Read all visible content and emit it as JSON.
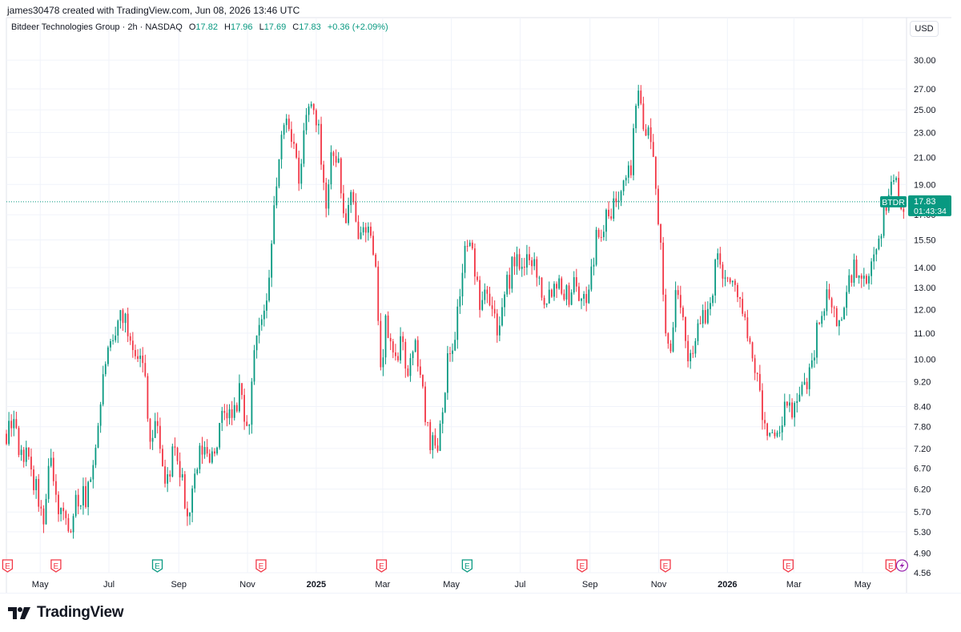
{
  "header": {
    "created_line": "james30478 created with TradingView.com, Jun 08, 2026 13:46 UTC",
    "symbol_title": "Bitdeer Technologies Group · 2h · NASDAQ",
    "ohlc": {
      "o_label": "O",
      "o": "17.82",
      "h_label": "H",
      "h": "17.96",
      "l_label": "L",
      "l": "17.69",
      "c_label": "C",
      "c": "17.83",
      "change": "+0.36 (+2.09%)"
    },
    "currency": "USD"
  },
  "footer": {
    "brand": "TradingView"
  },
  "chart_data": {
    "type": "candlestick",
    "symbol": "BTDR",
    "interval": "2h",
    "scale": "log",
    "last_price": 17.83,
    "countdown": "01:43:34",
    "price_label": "17.83",
    "y_ticks": [
      30.0,
      27.0,
      25.0,
      23.0,
      21.0,
      19.0,
      17.0,
      15.5,
      14.0,
      13.0,
      12.0,
      11.0,
      10.0,
      9.2,
      8.4,
      7.8,
      7.2,
      6.7,
      6.2,
      5.7,
      5.3,
      4.9,
      4.56
    ],
    "y_tick_labels": [
      "30.00",
      "27.00",
      "25.00",
      "23.00",
      "21.00",
      "19.00",
      "17.00",
      "15.50",
      "14.00",
      "13.00",
      "12.00",
      "11.00",
      "10.00",
      "9.20",
      "8.40",
      "7.80",
      "7.20",
      "6.70",
      "6.20",
      "5.70",
      "5.30",
      "4.90",
      "4.56"
    ],
    "ylim": [
      4.56,
      32.5
    ],
    "x_labels": [
      "May",
      "Jul",
      "Sep",
      "Nov",
      "2025",
      "Mar",
      "May",
      "Jul",
      "Sep",
      "Nov",
      "2026",
      "Mar",
      "May"
    ],
    "x_label_bold": [
      false,
      false,
      false,
      false,
      true,
      false,
      false,
      false,
      false,
      false,
      true,
      false,
      false
    ],
    "x_label_dates": [
      "2024-05-01",
      "2024-07-01",
      "2024-09-01",
      "2024-11-01",
      "2025-01-01",
      "2025-03-01",
      "2025-05-01",
      "2025-07-01",
      "2025-09-01",
      "2025-11-01",
      "2026-01-01",
      "2026-03-01",
      "2026-05-01"
    ],
    "x_range": [
      "2024-04-01",
      "2026-06-09"
    ],
    "series": [
      {
        "name": "",
        "anchors": [
          [
            "2024-04-01",
            7.6
          ],
          [
            "2024-04-07",
            8.0
          ],
          [
            "2024-04-14",
            7.0
          ],
          [
            "2024-04-21",
            6.9
          ],
          [
            "2024-04-28",
            6.1
          ],
          [
            "2024-05-04",
            5.4
          ],
          [
            "2024-05-10",
            6.9
          ],
          [
            "2024-05-15",
            6.0
          ],
          [
            "2024-05-21",
            5.6
          ],
          [
            "2024-05-28",
            5.5
          ],
          [
            "2024-06-04",
            6.0
          ],
          [
            "2024-06-12",
            6.0
          ],
          [
            "2024-06-20",
            7.5
          ],
          [
            "2024-06-28",
            10.0
          ],
          [
            "2024-07-05",
            10.4
          ],
          [
            "2024-07-12",
            12.1
          ],
          [
            "2024-07-18",
            11.0
          ],
          [
            "2024-07-25",
            10.5
          ],
          [
            "2024-08-02",
            9.5
          ],
          [
            "2024-08-07",
            7.3
          ],
          [
            "2024-08-13",
            8.0
          ],
          [
            "2024-08-20",
            6.2
          ],
          [
            "2024-08-27",
            7.1
          ],
          [
            "2024-09-03",
            6.5
          ],
          [
            "2024-09-09",
            5.5
          ],
          [
            "2024-09-14",
            6.2
          ],
          [
            "2024-09-21",
            7.2
          ],
          [
            "2024-09-28",
            7.0
          ],
          [
            "2024-10-05",
            7.4
          ],
          [
            "2024-10-12",
            8.3
          ],
          [
            "2024-10-19",
            8.0
          ],
          [
            "2024-10-26",
            9.0
          ],
          [
            "2024-11-01",
            7.5
          ],
          [
            "2024-11-07",
            10.0
          ],
          [
            "2024-11-13",
            11.5
          ],
          [
            "2024-11-19",
            12.0
          ],
          [
            "2024-11-25",
            18.0
          ],
          [
            "2024-12-01",
            22.0
          ],
          [
            "2024-12-06",
            25.0
          ],
          [
            "2024-12-12",
            22.0
          ],
          [
            "2024-12-17",
            18.5
          ],
          [
            "2024-12-21",
            23.0
          ],
          [
            "2024-12-26",
            26.0
          ],
          [
            "2025-01-01",
            24.5
          ],
          [
            "2025-01-06",
            21.0
          ],
          [
            "2025-01-10",
            17.5
          ],
          [
            "2025-01-15",
            22.0
          ],
          [
            "2025-01-20",
            21.0
          ],
          [
            "2025-01-26",
            16.5
          ],
          [
            "2025-02-01",
            18.0
          ],
          [
            "2025-02-06",
            16.0
          ],
          [
            "2025-02-12",
            17.0
          ],
          [
            "2025-02-18",
            15.5
          ],
          [
            "2025-02-24",
            13.0
          ],
          [
            "2025-02-28",
            9.3
          ],
          [
            "2025-03-04",
            11.5
          ],
          [
            "2025-03-10",
            10.0
          ],
          [
            "2025-03-17",
            10.5
          ],
          [
            "2025-03-24",
            9.6
          ],
          [
            "2025-03-31",
            10.5
          ],
          [
            "2025-04-06",
            8.6
          ],
          [
            "2025-04-12",
            7.5
          ],
          [
            "2025-04-18",
            7.2
          ],
          [
            "2025-04-23",
            8.5
          ],
          [
            "2025-04-28",
            10.0
          ],
          [
            "2025-05-04",
            11.0
          ],
          [
            "2025-05-09",
            13.0
          ],
          [
            "2025-05-14",
            15.5
          ],
          [
            "2025-05-20",
            14.5
          ],
          [
            "2025-05-26",
            12.5
          ],
          [
            "2025-06-01",
            13.5
          ],
          [
            "2025-06-07",
            12.0
          ],
          [
            "2025-06-13",
            11.0
          ],
          [
            "2025-06-19",
            13.0
          ],
          [
            "2025-06-26",
            14.5
          ],
          [
            "2025-07-03",
            13.5
          ],
          [
            "2025-07-09",
            15.0
          ],
          [
            "2025-07-15",
            14.0
          ],
          [
            "2025-07-22",
            12.5
          ],
          [
            "2025-07-29",
            13.0
          ],
          [
            "2025-08-05",
            13.5
          ],
          [
            "2025-08-12",
            12.5
          ],
          [
            "2025-08-19",
            13.5
          ],
          [
            "2025-08-26",
            12.0
          ],
          [
            "2025-09-02",
            14.0
          ],
          [
            "2025-09-08",
            16.0
          ],
          [
            "2025-09-14",
            16.5
          ],
          [
            "2025-09-20",
            17.0
          ],
          [
            "2025-09-26",
            18.5
          ],
          [
            "2025-10-02",
            20.5
          ],
          [
            "2025-10-07",
            19.5
          ],
          [
            "2025-10-11",
            26.0
          ],
          [
            "2025-10-16",
            25.5
          ],
          [
            "2025-10-21",
            23.0
          ],
          [
            "2025-10-25",
            22.0
          ],
          [
            "2025-10-30",
            19.0
          ],
          [
            "2025-11-03",
            14.5
          ],
          [
            "2025-11-07",
            10.8
          ],
          [
            "2025-11-11",
            10.5
          ],
          [
            "2025-11-16",
            12.5
          ],
          [
            "2025-11-22",
            11.5
          ],
          [
            "2025-11-28",
            10.0
          ],
          [
            "2025-12-04",
            11.0
          ],
          [
            "2025-12-10",
            11.5
          ],
          [
            "2025-12-16",
            12.0
          ],
          [
            "2025-12-22",
            14.5
          ],
          [
            "2025-12-28",
            14.0
          ],
          [
            "2026-01-04",
            13.0
          ],
          [
            "2026-01-10",
            13.0
          ],
          [
            "2026-01-16",
            11.5
          ],
          [
            "2026-01-22",
            10.0
          ],
          [
            "2026-01-27",
            9.5
          ],
          [
            "2026-02-02",
            7.8
          ],
          [
            "2026-02-08",
            7.7
          ],
          [
            "2026-02-14",
            7.3
          ],
          [
            "2026-02-20",
            8.2
          ],
          [
            "2026-02-26",
            8.3
          ],
          [
            "2026-03-04",
            8.5
          ],
          [
            "2026-03-10",
            9.0
          ],
          [
            "2026-03-17",
            10.0
          ],
          [
            "2026-03-23",
            11.5
          ],
          [
            "2026-03-29",
            12.5
          ],
          [
            "2026-04-04",
            12.0
          ],
          [
            "2026-04-10",
            11.3
          ],
          [
            "2026-04-16",
            12.5
          ],
          [
            "2026-04-22",
            14.0
          ],
          [
            "2026-04-28",
            13.5
          ],
          [
            "2026-05-04",
            12.8
          ],
          [
            "2026-05-10",
            14.5
          ],
          [
            "2026-05-16",
            16.0
          ],
          [
            "2026-05-22",
            17.5
          ],
          [
            "2026-05-28",
            20.0
          ],
          [
            "2026-06-03",
            18.0
          ],
          [
            "2026-06-08",
            17.83
          ]
        ]
      }
    ],
    "colors": {
      "up": "#089981",
      "down": "#f23645",
      "grid": "#f0f3fa",
      "axis_text": "#131722"
    },
    "events": [
      {
        "date": "2024-04-02",
        "kind": "E",
        "color": "#f23645"
      },
      {
        "date": "2024-05-15",
        "kind": "E",
        "color": "#f23645"
      },
      {
        "date": "2024-08-13",
        "kind": "E",
        "color": "#089981"
      },
      {
        "date": "2024-11-13",
        "kind": "E",
        "color": "#f23645"
      },
      {
        "date": "2025-02-28",
        "kind": "E",
        "color": "#f23645"
      },
      {
        "date": "2025-05-15",
        "kind": "E",
        "color": "#089981"
      },
      {
        "date": "2025-08-25",
        "kind": "E",
        "color": "#f23645"
      },
      {
        "date": "2025-11-07",
        "kind": "E",
        "color": "#f23645"
      },
      {
        "date": "2026-02-24",
        "kind": "E",
        "color": "#f23645"
      },
      {
        "date": "2026-05-26",
        "kind": "E",
        "color": "#f23645"
      },
      {
        "date": "2026-06-05",
        "kind": "split",
        "color": "#9c27b0"
      }
    ]
  }
}
